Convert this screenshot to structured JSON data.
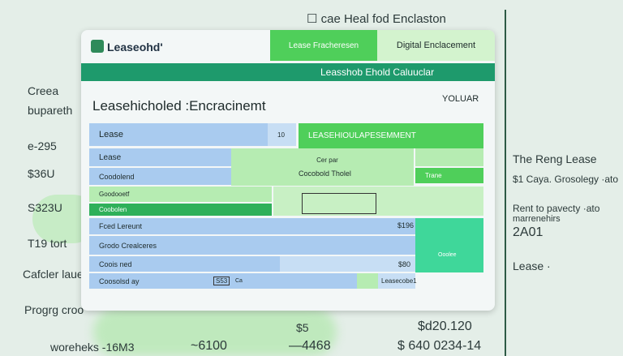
{
  "background": {
    "top_title": "cae Heal fod Enclaston",
    "left_items": [
      "Creea",
      "bupareth",
      "e-295",
      "$36U",
      "S323U",
      "T19 tort",
      "Cafcler laue",
      "Progrg croo"
    ],
    "right_items": [
      "The Reng Lease",
      "$1 Caya. Grosolegy ·ato",
      "Rent to pavecty ·ato",
      "marrenehirs",
      "2A01",
      "Lease ·"
    ],
    "bottom_items": [
      "woreheks -16M3",
      "~6100",
      "—4468",
      "$ 640 0234-14",
      "$d20.120",
      "$5"
    ]
  },
  "card": {
    "logo": "Leaseohd'",
    "tabs": [
      "Lease Fracheresen",
      "Digital Enclacement"
    ],
    "banner": "Leasshob Ehold Caluuclar",
    "heading": "Leasehicholed :Encracinemt",
    "heading_right": "YOLUAR",
    "rows": [
      [
        "Lease",
        "10",
        "LEASEHIOULAPESEMMENT"
      ],
      [
        "Lease",
        "Cer par"
      ],
      [
        "Coodolend",
        "Cocobold Tholel",
        "Trane"
      ],
      [
        "Goodooetf"
      ],
      [
        "Coobolen"
      ],
      [
        "Fced Lereunt",
        "$196"
      ],
      [
        "Grodo Crealceres"
      ],
      [
        "Coois ned",
        "$80",
        "Ooolee"
      ],
      [
        "Coosolsd ay",
        "S53",
        "Ca",
        "Leasecobe1"
      ]
    ]
  }
}
